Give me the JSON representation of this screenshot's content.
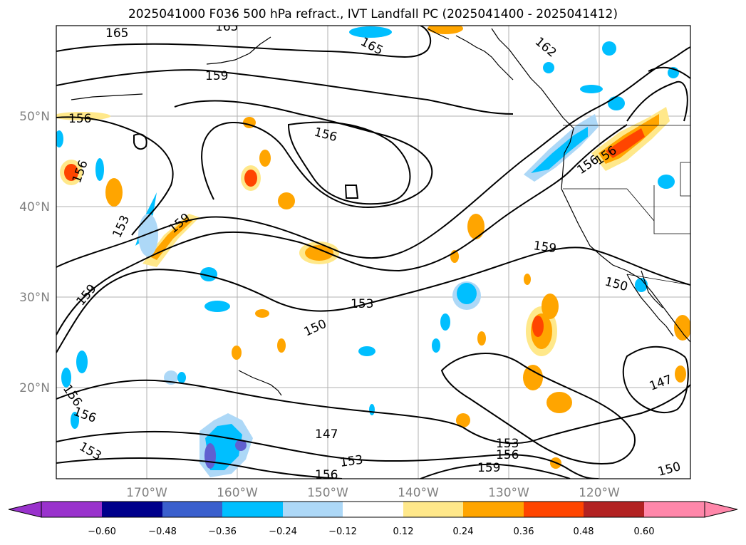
{
  "title": "2025041000 F036 500 hPa refract., IVT Landfall PC (2025041400 - 2025041412)",
  "lon_ticks": [
    "170°W",
    "160°W",
    "150°W",
    "140°W",
    "130°W",
    "120°W"
  ],
  "lat_ticks": [
    "50°N",
    "40°N",
    "30°N",
    "20°N"
  ],
  "contour_labels": [
    "165",
    "165",
    "165",
    "162",
    "159",
    "156",
    "156",
    "156",
    "156",
    "159",
    "153",
    "159",
    "153",
    "150",
    "159",
    "150",
    "147",
    "147",
    "153",
    "156",
    "153",
    "156",
    "156",
    "153",
    "159",
    "150",
    "156",
    "156"
  ],
  "colorbar": {
    "ticks": [
      "−0.60",
      "−0.48",
      "−0.36",
      "−0.24",
      "−0.12",
      "0.12",
      "0.24",
      "0.36",
      "0.48",
      "0.60"
    ],
    "colors": [
      "#9932cc",
      "#00008b",
      "#3a5fcd",
      "#00bfff",
      "#add8f7",
      "#ffffff",
      "#ffe88a",
      "#ffa500",
      "#ff4500",
      "#b22222",
      "#ff87aa"
    ]
  },
  "colors": {
    "land_outline": "#000000",
    "contour": "#000000",
    "grid": "#b0b0b0",
    "neg_light": "#add8f7",
    "neg_mid": "#00bfff",
    "neg_dark": "#3a5fcd",
    "neg_deep": "#6060d0",
    "pos_light": "#ffe88a",
    "pos_mid": "#ffa500",
    "pos_strong": "#ff4500"
  }
}
